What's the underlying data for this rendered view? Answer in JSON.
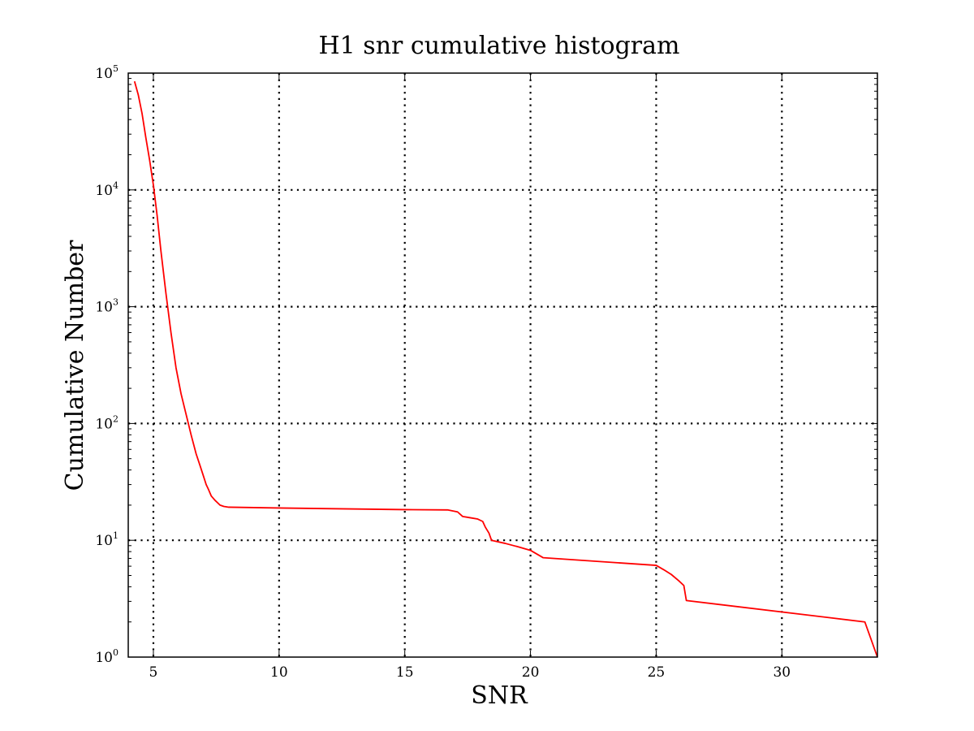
{
  "chart_data": {
    "type": "line",
    "title": "H1 snr cumulative histogram",
    "xlabel": "SNR",
    "ylabel": "Cumulative Number",
    "xlim": [
      4.0,
      33.8
    ],
    "ylim": [
      1,
      100000
    ],
    "y_scale": "log",
    "grid": true,
    "grid_style": "dotted",
    "x_ticks": [
      5,
      10,
      15,
      20,
      25,
      30
    ],
    "x_tick_labels": [
      "5",
      "10",
      "15",
      "20",
      "25",
      "30"
    ],
    "y_ticks": [
      1,
      10,
      100,
      1000,
      10000,
      100000
    ],
    "y_tick_labels": [
      {
        "base": "10",
        "exp": "0"
      },
      {
        "base": "10",
        "exp": "1"
      },
      {
        "base": "10",
        "exp": "2"
      },
      {
        "base": "10",
        "exp": "3"
      },
      {
        "base": "10",
        "exp": "4"
      },
      {
        "base": "10",
        "exp": "5"
      }
    ],
    "series": [
      {
        "color": "#ff0000",
        "x": [
          4.25,
          4.4,
          4.55,
          4.7,
          4.85,
          5.0,
          5.15,
          5.3,
          5.5,
          5.7,
          5.9,
          6.1,
          6.3,
          6.5,
          6.7,
          6.85,
          7.0,
          7.1,
          7.2,
          7.3,
          7.45,
          7.55,
          7.65,
          7.8,
          8.0,
          10.0,
          15.0,
          16.7,
          17.1,
          17.3,
          17.6,
          17.9,
          18.1,
          18.2,
          18.35,
          18.45,
          19.0,
          19.5,
          20.0,
          20.5,
          25.0,
          25.3,
          25.6,
          25.9,
          26.1,
          26.2,
          33.3,
          33.8
        ],
        "y": [
          85000,
          65000,
          45000,
          28000,
          18000,
          11000,
          6000,
          3000,
          1300,
          600,
          300,
          180,
          120,
          80,
          55,
          44,
          35,
          30,
          27,
          24,
          22,
          21,
          20,
          19.5,
          19.2,
          18.9,
          18.3,
          18.2,
          17.5,
          16.0,
          15.6,
          15.2,
          14.5,
          13.0,
          11.5,
          10.0,
          9.4,
          8.8,
          8.2,
          7.1,
          6.1,
          5.6,
          5.1,
          4.5,
          4.1,
          3.05,
          2.0,
          1.0
        ]
      }
    ]
  }
}
